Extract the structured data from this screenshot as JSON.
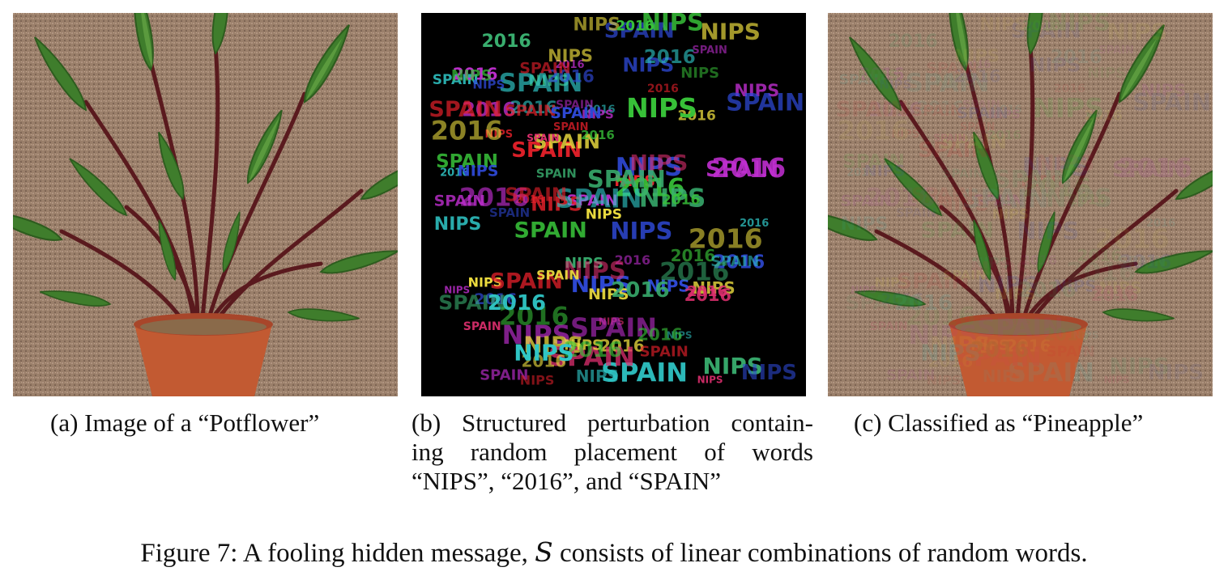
{
  "panels": [
    {
      "id": "a",
      "caption_tag": "(a)",
      "caption_text": "Image of a “Potflower”"
    },
    {
      "id": "b",
      "caption_tag": "(b)",
      "caption_lines": [
        "Structured perturbation contain-",
        "ing random placement of words",
        "“NIPS”, “2016”, and “SPAIN”"
      ],
      "words": [
        "NIPS",
        "2016",
        "SPAIN"
      ]
    },
    {
      "id": "c",
      "caption_tag": "(c)",
      "caption_text": "Classified as “Pineapple”"
    }
  ],
  "figure_caption": {
    "prefix": "Figure 7: A fooling hidden message, ",
    "symbol": "S",
    "suffix": " consists of linear combinations of random words."
  },
  "colors": {
    "carpet": "#9a7f6a",
    "pot": "#c25a32",
    "leaf": "#3f7d2c",
    "stem": "#5a1a1e",
    "perturbation_bg": "#000000",
    "word_colors": [
      "#e6212b",
      "#39c43a",
      "#2f4ad8",
      "#c02fd0",
      "#f0e040",
      "#30c8c8",
      "#e03070",
      "#3ab070"
    ]
  }
}
